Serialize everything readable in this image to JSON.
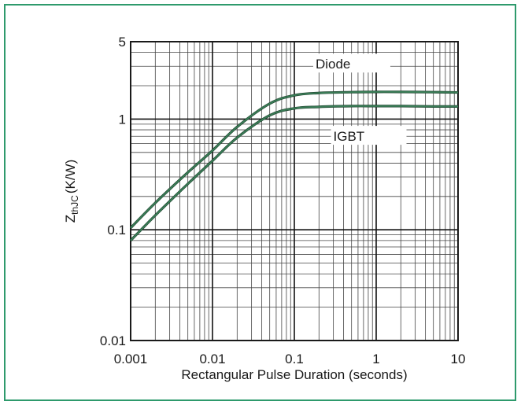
{
  "chart_data": {
    "type": "line",
    "title": "",
    "xlabel": "Rectangular Pulse Duration (seconds)",
    "ylabel_main": "Z",
    "ylabel_sub": "thJC",
    "ylabel_unit": "(K/W)",
    "xscale": "log",
    "yscale": "log",
    "xlim": [
      0.001,
      10
    ],
    "ylim": [
      0.01,
      5
    ],
    "grid": true,
    "x_ticks": [
      {
        "value": 0.001,
        "label": "0.001"
      },
      {
        "value": 0.01,
        "label": "0.01"
      },
      {
        "value": 0.1,
        "label": "0.1"
      },
      {
        "value": 1,
        "label": "1"
      },
      {
        "value": 10,
        "label": "10"
      }
    ],
    "y_ticks": [
      {
        "value": 0.01,
        "label": "0.01"
      },
      {
        "value": 0.1,
        "label": "0.1"
      },
      {
        "value": 1,
        "label": "1"
      },
      {
        "value": 5,
        "label": "5"
      }
    ],
    "series": [
      {
        "name": "Diode",
        "color": "#3a7d57",
        "x": [
          0.001,
          0.002,
          0.005,
          0.01,
          0.02,
          0.05,
          0.1,
          0.2,
          0.5,
          1,
          2,
          5,
          10
        ],
        "y": [
          0.104,
          0.175,
          0.33,
          0.52,
          0.85,
          1.38,
          1.64,
          1.72,
          1.75,
          1.76,
          1.76,
          1.75,
          1.74
        ]
      },
      {
        "name": "IGBT",
        "color": "#3a7d57",
        "x": [
          0.001,
          0.002,
          0.005,
          0.01,
          0.02,
          0.05,
          0.1,
          0.2,
          0.5,
          1,
          2,
          5,
          10
        ],
        "y": [
          0.08,
          0.135,
          0.26,
          0.42,
          0.68,
          1.08,
          1.25,
          1.29,
          1.31,
          1.31,
          1.31,
          1.3,
          1.3
        ]
      }
    ]
  }
}
